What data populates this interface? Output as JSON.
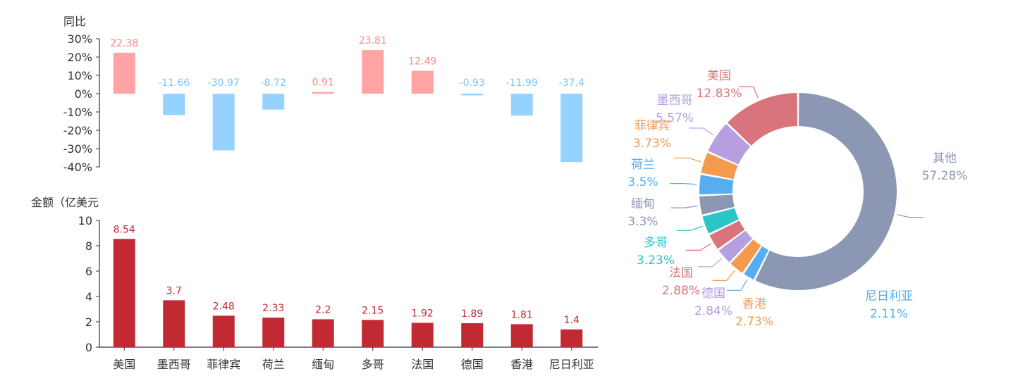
{
  "chart_data": [
    {
      "type": "bar",
      "ylabel": "同比",
      "ylim": [
        -40,
        30
      ],
      "yticks": [
        "30%",
        "20%",
        "10%",
        "0%",
        "-10%",
        "-20%",
        "-30%",
        "-40%"
      ],
      "categories": [
        "美国",
        "墨西哥",
        "菲律宾",
        "荷兰",
        "缅甸",
        "多哥",
        "法国",
        "德国",
        "香港",
        "尼日利亚"
      ],
      "values": [
        22.38,
        -11.66,
        -30.97,
        -8.72,
        0.91,
        23.81,
        12.49,
        -0.93,
        -11.99,
        -37.4
      ],
      "value_labels": [
        "22.38",
        "-11.66",
        "-30.97",
        "-8.72",
        "0.91",
        "23.81",
        "12.49",
        "-0.93",
        "-11.99",
        "-37.4"
      ],
      "colors": {
        "positive": "#FFA3A5",
        "negative": "#96D2FF",
        "positive_label": "#F7898E",
        "negative_label": "#7CC3F7"
      }
    },
    {
      "type": "bar",
      "ylabel": "金额（亿美元",
      "ylim": [
        0,
        10
      ],
      "yticks": [
        "10",
        "8",
        "6",
        "4",
        "2",
        "0"
      ],
      "categories": [
        "美国",
        "墨西哥",
        "菲律宾",
        "荷兰",
        "缅甸",
        "多哥",
        "法国",
        "德国",
        "香港",
        "尼日利亚"
      ],
      "values": [
        8.54,
        3.7,
        2.48,
        2.33,
        2.2,
        2.15,
        1.92,
        1.89,
        1.81,
        1.4
      ],
      "value_labels": [
        "8.54",
        "3.7",
        "2.48",
        "2.33",
        "2.2",
        "2.15",
        "1.92",
        "1.89",
        "1.81",
        "1.4"
      ],
      "colors": {
        "bar": "#C12A32",
        "label": "#C12A32"
      }
    },
    {
      "type": "pie",
      "slices": [
        {
          "label": "其他",
          "value": 57.28,
          "pct_text": "57.28%",
          "color": "#8C98B3",
          "text_color": "#8C98B3"
        },
        {
          "label": "尼日利亚",
          "value": 2.11,
          "pct_text": "2.11%",
          "color": "#56AEF0",
          "text_color": "#56AEF0"
        },
        {
          "label": "香港",
          "value": 2.73,
          "pct_text": "2.73%",
          "color": "#F49A4E",
          "text_color": "#F49A4E"
        },
        {
          "label": "德国",
          "value": 2.84,
          "pct_text": "2.84%",
          "color": "#B59FE0",
          "text_color": "#B59FE0"
        },
        {
          "label": "法国",
          "value": 2.88,
          "pct_text": "2.88%",
          "color": "#D9747C",
          "text_color": "#D9747C"
        },
        {
          "label": "多哥",
          "value": 3.23,
          "pct_text": "3.23%",
          "color": "#2BC4C7",
          "text_color": "#2BC4C7"
        },
        {
          "label": "缅甸",
          "value": 3.3,
          "pct_text": "3.3%",
          "color": "#8C98B3",
          "text_color": "#8C98B3"
        },
        {
          "label": "荷兰",
          "value": 3.5,
          "pct_text": "3.5%",
          "color": "#56AEF0",
          "text_color": "#56AEF0"
        },
        {
          "label": "菲律宾",
          "value": 3.73,
          "pct_text": "3.73%",
          "color": "#F49A4E",
          "text_color": "#F49A4E"
        },
        {
          "label": "墨西哥",
          "value": 5.57,
          "pct_text": "5.57%",
          "color": "#B59FE0",
          "text_color": "#B59FE0"
        },
        {
          "label": "美国",
          "value": 12.83,
          "pct_text": "12.83%",
          "color": "#D9747C",
          "text_color": "#D9747C"
        }
      ]
    }
  ]
}
